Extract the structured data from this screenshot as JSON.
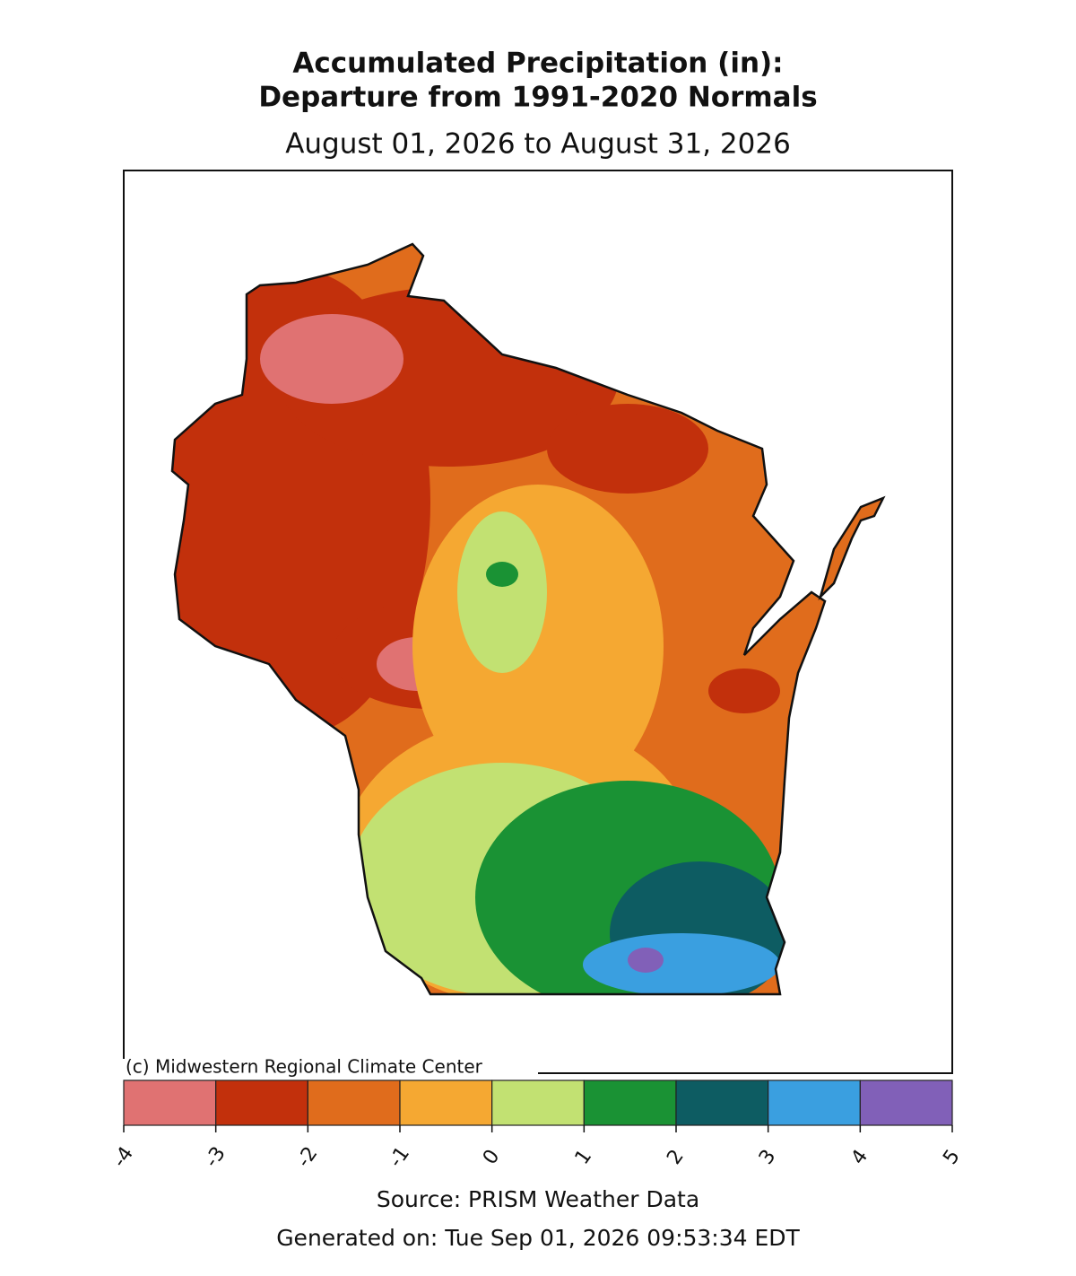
{
  "title": [
    "Accumulated Precipitation (in):",
    "Departure from 1991-2020 Normals"
  ],
  "subtitle": "August 01, 2026 to August 31, 2026",
  "copyright": "(c) Midwestern Regional Climate Center",
  "colorbar": {
    "bounds": [
      -4,
      -3,
      -2,
      -1,
      0,
      1,
      2,
      3,
      4,
      5
    ],
    "colors": [
      "#e07272",
      "#c2300c",
      "#e06c1c",
      "#f5a832",
      "#c2e172",
      "#1a9234",
      "#0d5c62",
      "#3a9fe0",
      "#8160b8"
    ]
  },
  "source": "Source: PRISM Weather Data",
  "generated": "Generated on: Tue Sep 01, 2026 09:53:34 EDT"
}
